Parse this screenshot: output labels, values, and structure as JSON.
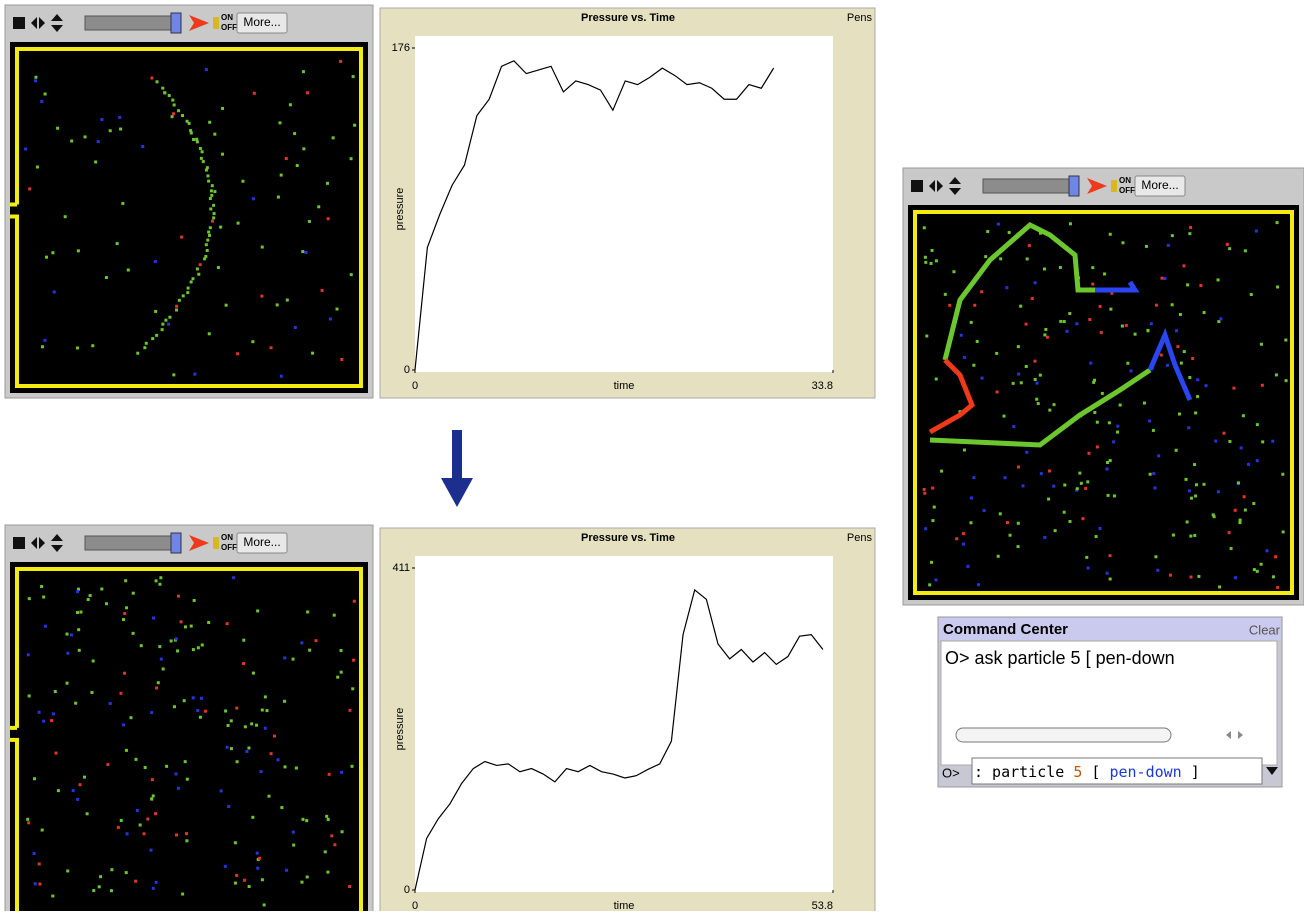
{
  "toolbar": {
    "more": "More...",
    "on": "ON",
    "off": "OFF"
  },
  "chart_data": [
    {
      "type": "line",
      "title": "Pressure vs. Time",
      "pens_button": "Pens",
      "xlabel": "time",
      "ylabel": "pressure",
      "x": [
        0,
        1,
        2,
        3,
        4,
        5,
        6,
        7,
        8,
        9,
        10,
        11,
        12,
        13,
        14,
        15,
        16,
        17,
        18,
        19,
        20,
        21,
        22,
        23,
        24,
        25,
        26,
        27,
        28,
        29
      ],
      "values": [
        0,
        67,
        85,
        101,
        112,
        139,
        148,
        166,
        169,
        162,
        164,
        166,
        152,
        158,
        156,
        153,
        142,
        158,
        156,
        160,
        165,
        161,
        156,
        157,
        154,
        148,
        148,
        156,
        154,
        165
      ],
      "color": "#000000",
      "xlim": [
        0,
        33.8
      ],
      "xticks": [
        0,
        33.8
      ],
      "ylim": [
        0,
        176
      ],
      "yticks": [
        0,
        176
      ],
      "grid": false
    },
    {
      "type": "line",
      "title": "Pressure vs. Time",
      "pens_button": "Pens",
      "xlabel": "time",
      "ylabel": "pressure",
      "x": [
        0,
        1.5,
        3,
        4.5,
        6,
        7.5,
        9,
        10.5,
        12,
        13.5,
        15,
        16.5,
        18,
        19.5,
        21,
        22.5,
        24,
        25.5,
        27,
        28.5,
        30,
        31.5,
        33,
        34.5,
        36,
        37.5,
        39,
        40.5,
        42,
        43.5,
        45,
        46.5,
        48,
        49.5,
        51,
        52.5
      ],
      "values": [
        0,
        66,
        91,
        110,
        136,
        155,
        164,
        159,
        161,
        151,
        155,
        148,
        138,
        155,
        151,
        159,
        151,
        148,
        143,
        146,
        154,
        161,
        190,
        326,
        383,
        371,
        314,
        295,
        307,
        291,
        303,
        288,
        298,
        324,
        326,
        307
      ],
      "color": "#000000",
      "xlim": [
        0,
        53.8
      ],
      "xticks": [
        0,
        53.8
      ],
      "ylim": [
        0,
        411
      ],
      "yticks": [
        0,
        411
      ],
      "grid": false
    }
  ],
  "command_center": {
    "title": "Command Center",
    "clear": "Clear",
    "output": "O> ask particle 5 [ pen-down",
    "prompt": "O>",
    "input": [
      ": particle ",
      "5",
      " [ ",
      "pen-down",
      " ]"
    ]
  }
}
